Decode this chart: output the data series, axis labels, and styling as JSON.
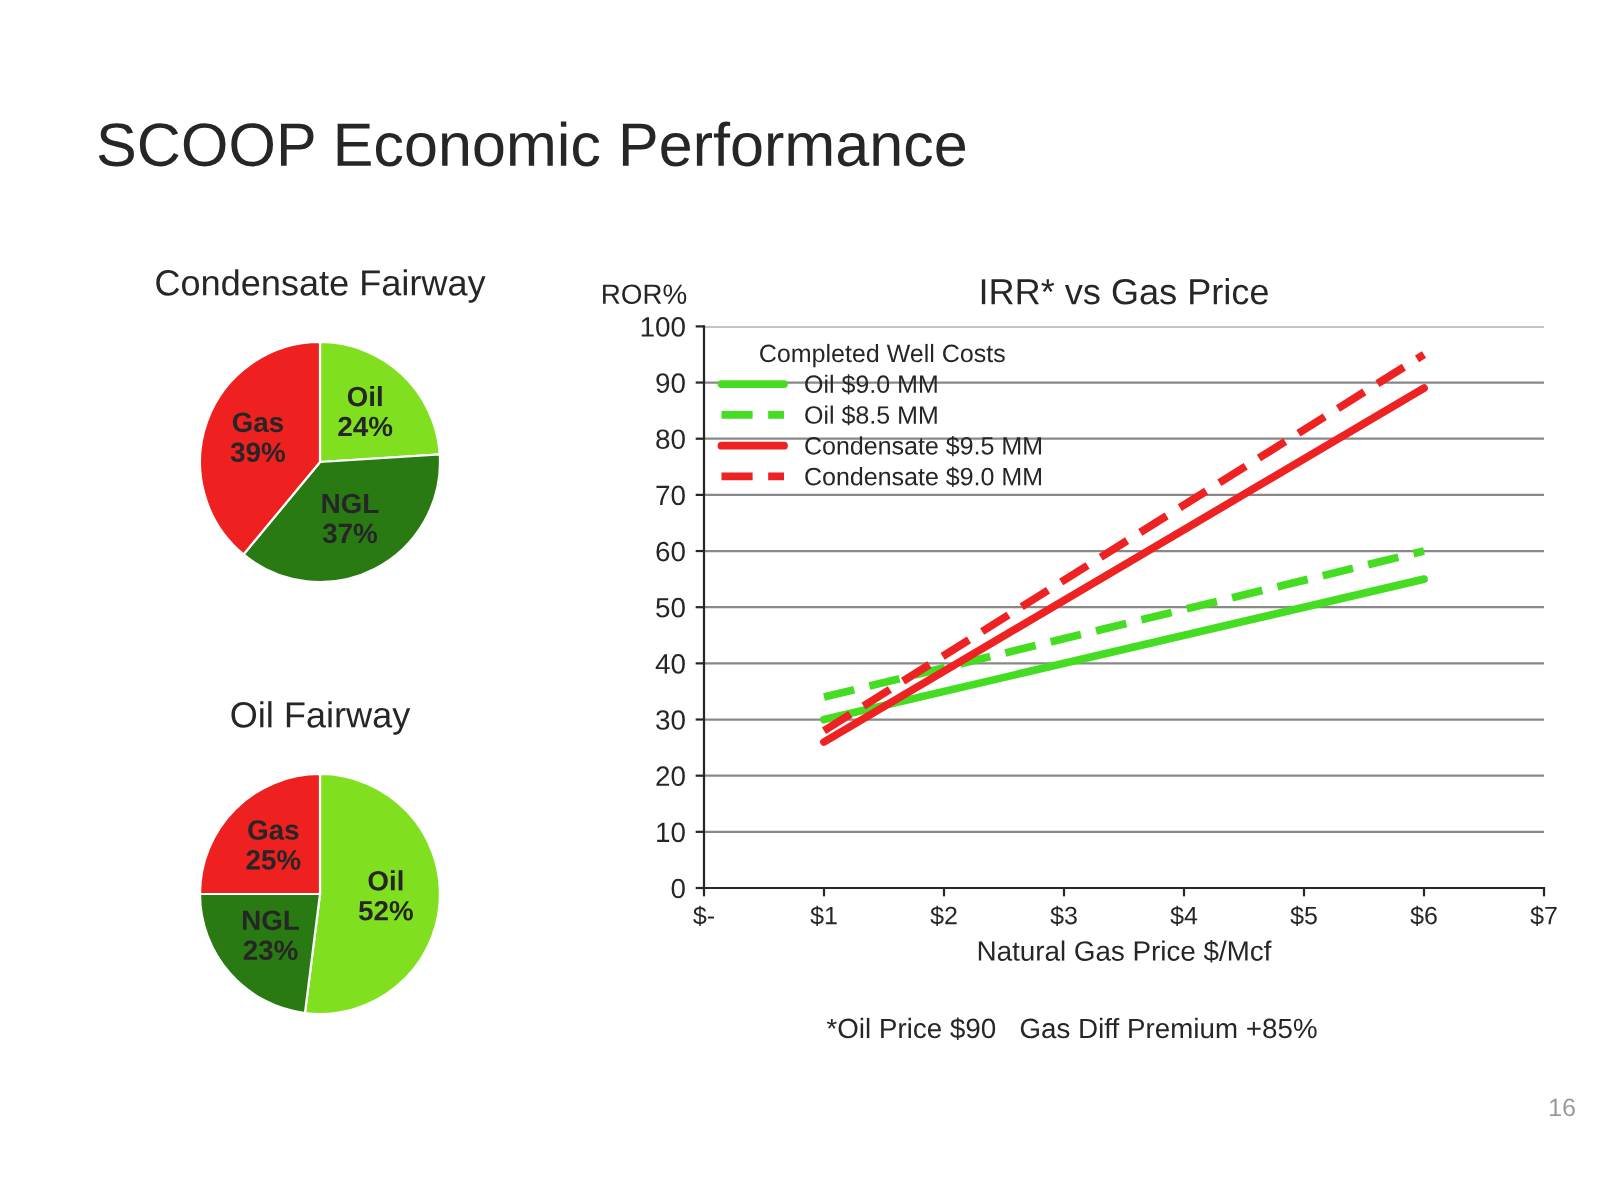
{
  "chart_data": [
    {
      "type": "pie",
      "title": "Condensate Fairway",
      "annotations": [
        "SCOOP Economic Performance"
      ],
      "categories": [
        "Oil",
        "NGL",
        "Gas"
      ],
      "values": [
        24,
        37,
        39
      ],
      "colors": [
        "#80e020",
        "#2a7a14",
        "#ee2020"
      ],
      "value_labels": [
        "24%",
        "37%",
        "39%"
      ]
    },
    {
      "type": "pie",
      "title": "Oil Fairway",
      "categories": [
        "Oil",
        "NGL",
        "Gas"
      ],
      "values": [
        52,
        23,
        25
      ],
      "colors": [
        "#80e020",
        "#2a7a14",
        "#ee2020"
      ],
      "value_labels": [
        "52%",
        "23%",
        "25%"
      ]
    },
    {
      "type": "line",
      "title": "IRR* vs Gas Price",
      "xlabel": "Natural Gas Price $/Mcf",
      "ylabel": "ROR%",
      "legend_title": "Completed Well Costs",
      "legend": "top left",
      "grid": "y",
      "annotations": [
        "*Oil Price $90   Gas Diff Premium +85%",
        "16"
      ],
      "x": [
        1,
        6
      ],
      "xlim": [
        0,
        7
      ],
      "xticks": [
        {
          "value": 0,
          "label": "$-"
        },
        {
          "value": 1,
          "label": "$1"
        },
        {
          "value": 2,
          "label": "$2"
        },
        {
          "value": 3,
          "label": "$3"
        },
        {
          "value": 4,
          "label": "$4"
        },
        {
          "value": 5,
          "label": "$5"
        },
        {
          "value": 6,
          "label": "$6"
        },
        {
          "value": 7,
          "label": "$7"
        }
      ],
      "ylim": [
        0,
        100
      ],
      "yticks": [
        0,
        10,
        20,
        30,
        40,
        50,
        60,
        70,
        80,
        90,
        100
      ],
      "series": [
        {
          "name": "Oil $9.0 MM",
          "color": "#44dd22",
          "values": [
            30,
            55
          ],
          "line_style": "solid"
        },
        {
          "name": "Oil $8.5 MM",
          "color": "#44dd22",
          "values": [
            34,
            60
          ],
          "line_style": "dashed"
        },
        {
          "name": "Condensate $9.5 MM",
          "color": "#ee2222",
          "values": [
            26,
            89
          ],
          "line_style": "solid"
        },
        {
          "name": "Condensate $9.0 MM",
          "color": "#ee2222",
          "values": [
            28,
            95
          ],
          "line_style": "dashed"
        }
      ]
    }
  ]
}
